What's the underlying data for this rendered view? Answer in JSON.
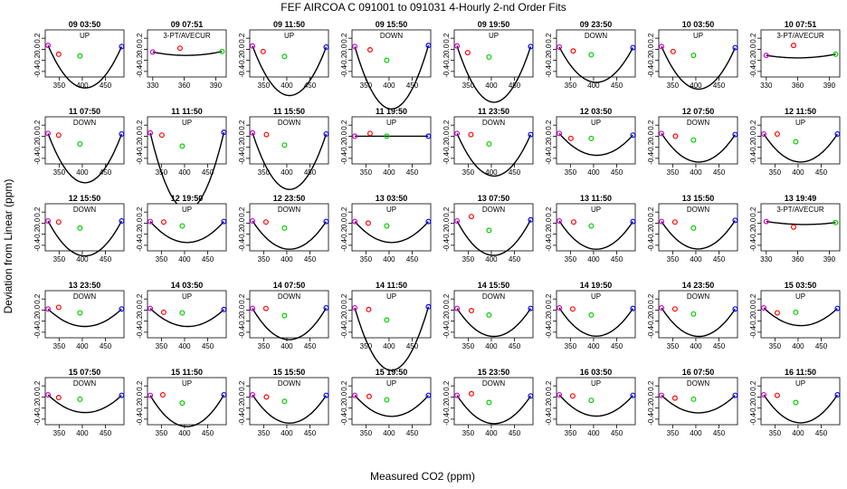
{
  "figure": {
    "title": "FEF   AIRCOA C   091001 to 091031   4-Hourly 2-nd Order Fits",
    "xlabel": "Measured CO2 (ppm)",
    "ylabel": "Deviation from Linear (ppm)"
  },
  "colors": {
    "curve": "#000000",
    "p_low": "#cc00cc",
    "p_mid": "#ff0000",
    "p_green": "#00cc00",
    "p_high": "#0000ff"
  },
  "chart_data": {
    "type": "scatter",
    "layout": {
      "rows": 5,
      "cols": 8
    },
    "y_ticks": [
      "0.2",
      "0.0",
      "-0.2",
      "-0.4"
    ],
    "ylim": [
      -0.5,
      0.35
    ],
    "x_ticks_up": [
      "350",
      "400",
      "450"
    ],
    "x_ticks_3pt": [
      "330",
      "360",
      "390"
    ],
    "panels": [
      {
        "title": "09 03:50",
        "dir": "UP",
        "a": 0.00012,
        "pts": [
          [
            326,
            0.07
          ],
          [
            349,
            -0.09
          ],
          [
            395,
            -0.12
          ],
          [
            485,
            0.05
          ]
        ]
      },
      {
        "title": "09 07:51",
        "dir": "3-PT/AVECUR",
        "three": true,
        "a": 6e-05,
        "pts": [
          [
            330,
            -0.05
          ],
          [
            356,
            0.02
          ],
          [
            396,
            -0.04
          ]
        ]
      },
      {
        "title": "09 11:50",
        "dir": "UP",
        "a": 0.00014,
        "pts": [
          [
            326,
            0.06
          ],
          [
            349,
            -0.04
          ],
          [
            395,
            -0.13
          ],
          [
            485,
            0.04
          ]
        ]
      },
      {
        "title": "09 15:50",
        "dir": "DOWN",
        "a": 0.00018,
        "pts": [
          [
            326,
            0.05
          ],
          [
            359,
            -0.01
          ],
          [
            395,
            -0.2
          ],
          [
            485,
            0.07
          ]
        ]
      },
      {
        "title": "09 19:50",
        "dir": "UP",
        "a": 0.00016,
        "pts": [
          [
            326,
            0.06
          ],
          [
            349,
            -0.06
          ],
          [
            395,
            -0.14
          ],
          [
            485,
            0.05
          ]
        ]
      },
      {
        "title": "09 23:50",
        "dir": "DOWN",
        "a": 0.0001,
        "pts": [
          [
            326,
            0.04
          ],
          [
            356,
            -0.03
          ],
          [
            395,
            -0.1
          ],
          [
            485,
            0.03
          ]
        ]
      },
      {
        "title": "10 03:50",
        "dir": "UP",
        "a": 0.00012,
        "pts": [
          [
            326,
            0.05
          ],
          [
            351,
            -0.04
          ],
          [
            395,
            -0.11
          ],
          [
            485,
            0.03
          ]
        ]
      },
      {
        "title": "10 07:51",
        "dir": "3-PT/AVECUR",
        "three": true,
        "a": 5e-05,
        "pts": [
          [
            330,
            -0.11
          ],
          [
            356,
            0.07
          ],
          [
            396,
            -0.09
          ]
        ]
      },
      {
        "title": "11 07:50",
        "dir": "DOWN",
        "a": 0.00014,
        "pts": [
          [
            326,
            0.05
          ],
          [
            349,
            0.02
          ],
          [
            395,
            -0.14
          ],
          [
            485,
            0.04
          ]
        ]
      },
      {
        "title": "11 11:50",
        "dir": "UP",
        "a": 0.00022,
        "pts": [
          [
            326,
            0.06
          ],
          [
            351,
            0.02
          ],
          [
            395,
            -0.18
          ],
          [
            485,
            0.07
          ]
        ]
      },
      {
        "title": "11 15:50",
        "dir": "DOWN",
        "a": 0.00016,
        "pts": [
          [
            326,
            0.06
          ],
          [
            356,
            0.03
          ],
          [
            395,
            -0.16
          ],
          [
            485,
            0.04
          ]
        ]
      },
      {
        "title": "11 19:50",
        "dir": "UP",
        "a": 0.0,
        "pts": [
          [
            326,
            0.0
          ],
          [
            359,
            0.05
          ],
          [
            395,
            0.0
          ],
          [
            485,
            0.0
          ]
        ]
      },
      {
        "title": "11 23:50",
        "dir": "DOWN",
        "a": 0.00012,
        "pts": [
          [
            326,
            0.05
          ],
          [
            356,
            0.03
          ],
          [
            395,
            -0.14
          ],
          [
            485,
            0.03
          ]
        ]
      },
      {
        "title": "12 03:50",
        "dir": "UP",
        "a": 6e-05,
        "pts": [
          [
            326,
            0.05
          ],
          [
            351,
            -0.04
          ],
          [
            395,
            -0.04
          ],
          [
            485,
            0.02
          ]
        ]
      },
      {
        "title": "12 07:50",
        "dir": "DOWN",
        "a": 8e-05,
        "pts": [
          [
            326,
            0.05
          ],
          [
            356,
            0.0
          ],
          [
            395,
            -0.07
          ],
          [
            485,
            0.03
          ]
        ]
      },
      {
        "title": "12 11:50",
        "dir": "UP",
        "a": 8e-05,
        "pts": [
          [
            326,
            0.04
          ],
          [
            355,
            0.04
          ],
          [
            395,
            -0.1
          ],
          [
            485,
            0.04
          ]
        ]
      },
      {
        "title": "12 15:50",
        "dir": "DOWN",
        "a": 0.0001,
        "pts": [
          [
            326,
            0.04
          ],
          [
            349,
            0.02
          ],
          [
            395,
            -0.09
          ],
          [
            485,
            0.04
          ]
        ]
      },
      {
        "title": "12 19:50",
        "dir": "UP",
        "a": 6e-05,
        "pts": [
          [
            326,
            0.03
          ],
          [
            355,
            0.02
          ],
          [
            395,
            -0.05
          ],
          [
            485,
            0.03
          ]
        ]
      },
      {
        "title": "12 23:50",
        "dir": "DOWN",
        "a": 8e-05,
        "pts": [
          [
            326,
            0.04
          ],
          [
            355,
            0.02
          ],
          [
            395,
            -0.09
          ],
          [
            485,
            0.03
          ]
        ]
      },
      {
        "title": "13 03:50",
        "dir": "UP",
        "a": 6e-05,
        "pts": [
          [
            326,
            0.03
          ],
          [
            355,
            0.0
          ],
          [
            395,
            -0.05
          ],
          [
            485,
            0.03
          ]
        ]
      },
      {
        "title": "13 07:50",
        "dir": "DOWN",
        "a": 0.0001,
        "pts": [
          [
            326,
            0.04
          ],
          [
            357,
            0.12
          ],
          [
            395,
            -0.13
          ],
          [
            485,
            0.06
          ]
        ]
      },
      {
        "title": "13 11:50",
        "dir": "UP",
        "a": 8e-05,
        "pts": [
          [
            326,
            0.04
          ],
          [
            357,
            0.02
          ],
          [
            395,
            -0.05
          ],
          [
            485,
            0.03
          ]
        ]
      },
      {
        "title": "13 15:50",
        "dir": "DOWN",
        "a": 8e-05,
        "pts": [
          [
            326,
            0.03
          ],
          [
            355,
            0.02
          ],
          [
            395,
            -0.09
          ],
          [
            485,
            0.05
          ]
        ]
      },
      {
        "title": "13 19:49",
        "dir": "3-PT/AVECUR",
        "three": true,
        "a": 4e-05,
        "pts": [
          [
            330,
            0.03
          ],
          [
            356,
            -0.07
          ],
          [
            396,
            0.01
          ]
        ]
      },
      {
        "title": "13 23:50",
        "dir": "DOWN",
        "a": 5e-05,
        "pts": [
          [
            326,
            0.02
          ],
          [
            349,
            0.05
          ],
          [
            395,
            -0.05
          ],
          [
            485,
            0.02
          ]
        ]
      },
      {
        "title": "14 03:50",
        "dir": "UP",
        "a": 5e-05,
        "pts": [
          [
            326,
            0.03
          ],
          [
            355,
            -0.04
          ],
          [
            395,
            -0.05
          ],
          [
            485,
            0.01
          ]
        ]
      },
      {
        "title": "14 07:50",
        "dir": "DOWN",
        "a": 9e-05,
        "pts": [
          [
            326,
            0.03
          ],
          [
            355,
            0.03
          ],
          [
            395,
            -0.1
          ],
          [
            485,
            0.04
          ]
        ]
      },
      {
        "title": "14 11:50",
        "dir": "UP",
        "a": 0.00018,
        "pts": [
          [
            326,
            0.04
          ],
          [
            356,
            0.01
          ],
          [
            395,
            -0.18
          ],
          [
            485,
            0.06
          ]
        ]
      },
      {
        "title": "14 15:50",
        "dir": "DOWN",
        "a": 8e-05,
        "pts": [
          [
            326,
            0.03
          ],
          [
            357,
            -0.01
          ],
          [
            395,
            -0.09
          ],
          [
            485,
            0.03
          ]
        ]
      },
      {
        "title": "14 19:50",
        "dir": "UP",
        "a": 8e-05,
        "pts": [
          [
            326,
            0.04
          ],
          [
            355,
            0.02
          ],
          [
            395,
            -0.09
          ],
          [
            485,
            0.03
          ]
        ]
      },
      {
        "title": "14 23:50",
        "dir": "DOWN",
        "a": 8e-05,
        "pts": [
          [
            326,
            0.04
          ],
          [
            355,
            0.02
          ],
          [
            395,
            -0.07
          ],
          [
            485,
            0.02
          ]
        ]
      },
      {
        "title": "15 03:50",
        "dir": "UP",
        "a": 5e-05,
        "pts": [
          [
            326,
            0.04
          ],
          [
            355,
            -0.05
          ],
          [
            395,
            -0.04
          ],
          [
            485,
            0.03
          ]
        ]
      },
      {
        "title": "15 07:50",
        "dir": "DOWN",
        "a": 5e-05,
        "pts": [
          [
            326,
            0.04
          ],
          [
            349,
            -0.01
          ],
          [
            395,
            -0.04
          ],
          [
            485,
            0.03
          ]
        ]
      },
      {
        "title": "15 11:50",
        "dir": "UP",
        "a": 9e-05,
        "pts": [
          [
            326,
            0.03
          ],
          [
            353,
            0.04
          ],
          [
            395,
            -0.11
          ],
          [
            485,
            0.04
          ]
        ]
      },
      {
        "title": "15 15:50",
        "dir": "DOWN",
        "a": 8e-05,
        "pts": [
          [
            326,
            0.04
          ],
          [
            356,
            0.0
          ],
          [
            395,
            -0.08
          ],
          [
            485,
            0.03
          ]
        ]
      },
      {
        "title": "15 19:50",
        "dir": "UP",
        "a": 6e-05,
        "pts": [
          [
            326,
            0.03
          ],
          [
            357,
            0.01
          ],
          [
            395,
            -0.05
          ],
          [
            485,
            0.03
          ]
        ]
      },
      {
        "title": "15 23:50",
        "dir": "DOWN",
        "a": 8e-05,
        "pts": [
          [
            326,
            0.03
          ],
          [
            357,
            0.06
          ],
          [
            395,
            -0.1
          ],
          [
            485,
            0.02
          ]
        ]
      },
      {
        "title": "16 03:50",
        "dir": "UP",
        "a": 6e-05,
        "pts": [
          [
            326,
            0.04
          ],
          [
            355,
            0.02
          ],
          [
            395,
            -0.06
          ],
          [
            485,
            0.03
          ]
        ]
      },
      {
        "title": "16 07:50",
        "dir": "DOWN",
        "a": 5e-05,
        "pts": [
          [
            326,
            0.03
          ],
          [
            355,
            -0.02
          ],
          [
            395,
            -0.04
          ],
          [
            485,
            0.03
          ]
        ]
      },
      {
        "title": "16 11:50",
        "dir": "UP",
        "a": 8e-05,
        "pts": [
          [
            326,
            0.04
          ],
          [
            355,
            0.03
          ],
          [
            395,
            -0.1
          ],
          [
            485,
            0.04
          ]
        ]
      }
    ]
  }
}
